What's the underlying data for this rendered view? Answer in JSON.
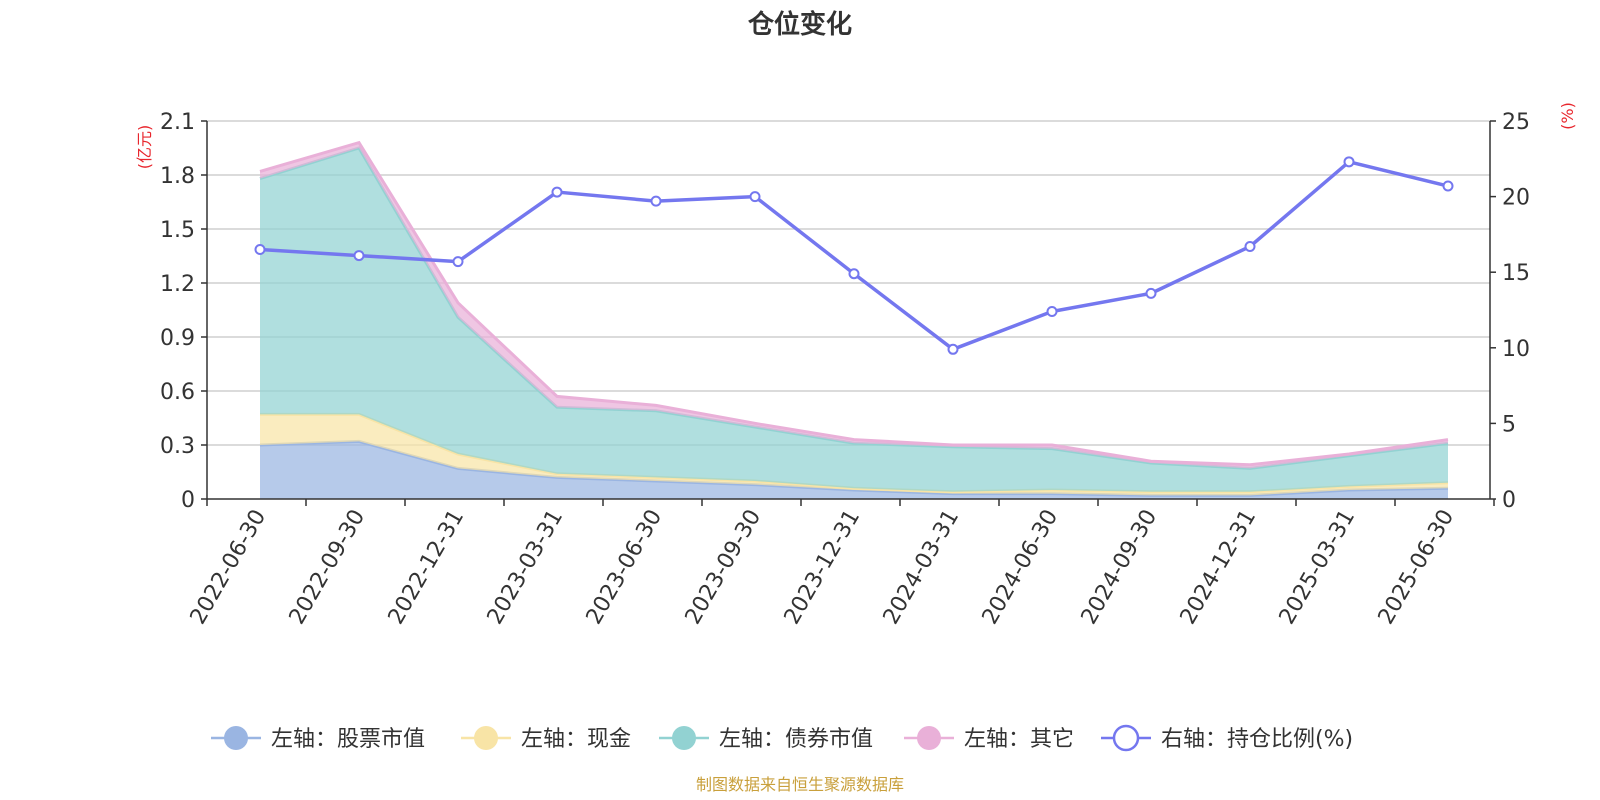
{
  "chart_data": {
    "type": "area",
    "title": "仓位变化",
    "categories": [
      "2022-06-30",
      "2022-09-30",
      "2022-12-31",
      "2023-03-31",
      "2023-06-30",
      "2023-09-30",
      "2023-12-31",
      "2024-03-31",
      "2024-06-30",
      "2024-09-30",
      "2024-12-31",
      "2025-03-31",
      "2025-06-30"
    ],
    "left_axis": {
      "unit": "(亿元)",
      "ylim": [
        0,
        2.1
      ],
      "ticks": [
        "0",
        "0.3",
        "0.6",
        "0.9",
        "1.2",
        "1.5",
        "1.8",
        "2.1"
      ]
    },
    "right_axis": {
      "unit": "(%)",
      "ylim": [
        0,
        25
      ],
      "ticks": [
        "0",
        "5",
        "10",
        "15",
        "20",
        "25"
      ]
    },
    "grid": true,
    "legend_position": "bottom",
    "stacked_series": [
      {
        "name": "左轴：股票市值",
        "color": "#9ab5e2",
        "values": [
          0.3,
          0.32,
          0.17,
          0.12,
          0.1,
          0.08,
          0.05,
          0.03,
          0.03,
          0.02,
          0.02,
          0.05,
          0.06
        ]
      },
      {
        "name": "左轴：现金",
        "color": "#f8e4a6",
        "values": [
          0.17,
          0.15,
          0.08,
          0.02,
          0.02,
          0.02,
          0.01,
          0.01,
          0.02,
          0.02,
          0.02,
          0.02,
          0.03
        ]
      },
      {
        "name": "左轴：债券市值",
        "color": "#92d2d2",
        "values": [
          1.31,
          1.48,
          0.76,
          0.37,
          0.37,
          0.3,
          0.25,
          0.25,
          0.23,
          0.16,
          0.13,
          0.17,
          0.22
        ]
      },
      {
        "name": "左轴：其它",
        "color": "#e9b0d8",
        "values": [
          0.04,
          0.03,
          0.08,
          0.06,
          0.03,
          0.02,
          0.02,
          0.01,
          0.02,
          0.01,
          0.02,
          0.01,
          0.02
        ]
      }
    ],
    "line_series": {
      "name": "右轴：持仓比例(%)",
      "color": "#7477ef",
      "values": [
        16.5,
        16.1,
        15.7,
        20.3,
        19.7,
        20.0,
        14.9,
        9.9,
        12.4,
        13.6,
        16.7,
        22.3,
        20.7
      ]
    }
  },
  "source_note": "制图数据来自恒生聚源数据库"
}
